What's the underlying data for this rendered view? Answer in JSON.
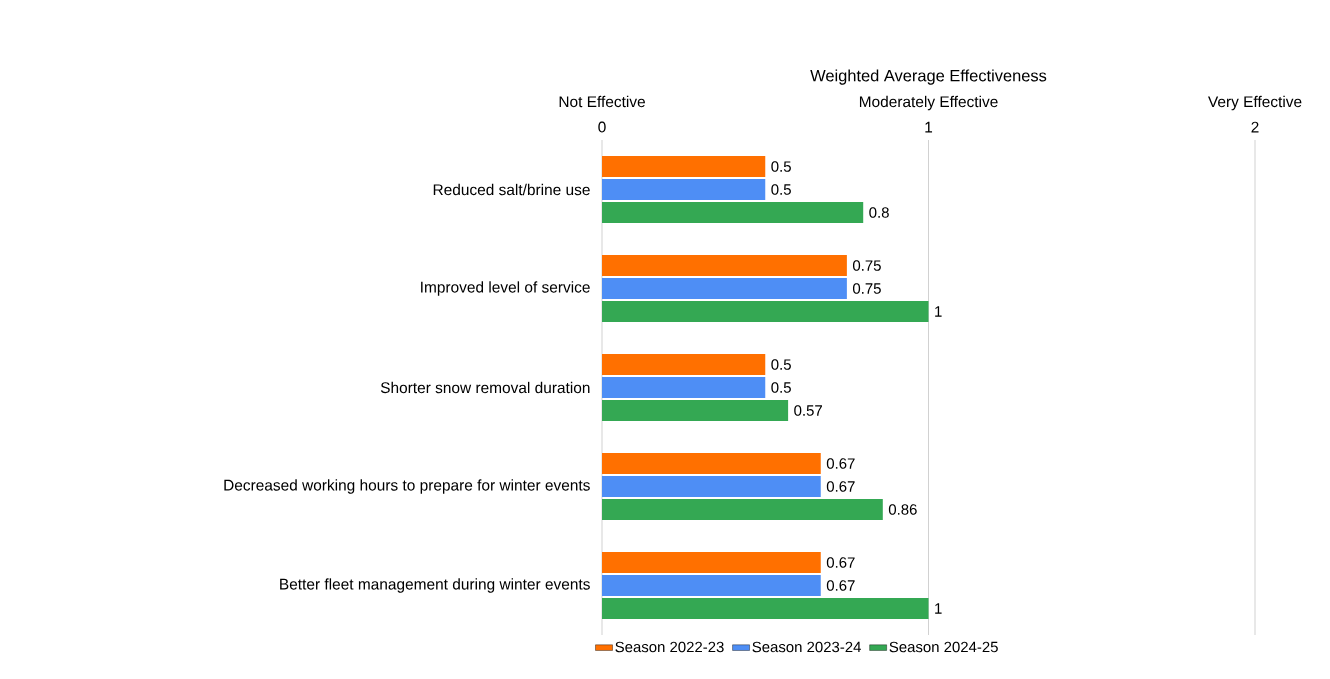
{
  "chart_data": {
    "type": "bar",
    "orientation": "horizontal",
    "categories": [
      "Reduced salt/brine use",
      "Improved level of service",
      "Shorter snow removal duration",
      "Decreased working hours to prepare for winter events",
      "Better fleet management during winter events"
    ],
    "series": [
      {
        "name": "Season 2022-23",
        "color": "#ff7000",
        "values": [
          0.5,
          0.75,
          0.5,
          0.67,
          0.67
        ]
      },
      {
        "name": "Season 2023-24",
        "color": "#4e8ef5",
        "values": [
          0.5,
          0.75,
          0.5,
          0.67,
          0.67
        ]
      },
      {
        "name": "Season 2024-25",
        "color": "#34a853",
        "values": [
          0.8,
          1,
          0.57,
          0.86,
          1
        ]
      }
    ],
    "xlabel": "Weighted Average Effectiveness",
    "xlim": [
      0,
      2
    ],
    "xticks": [
      0,
      1,
      2
    ],
    "annotations": [
      "Not Effective",
      "Moderately Effective",
      "Very Effective"
    ],
    "data_labels": true,
    "grid": "x",
    "legend": "bottom"
  }
}
